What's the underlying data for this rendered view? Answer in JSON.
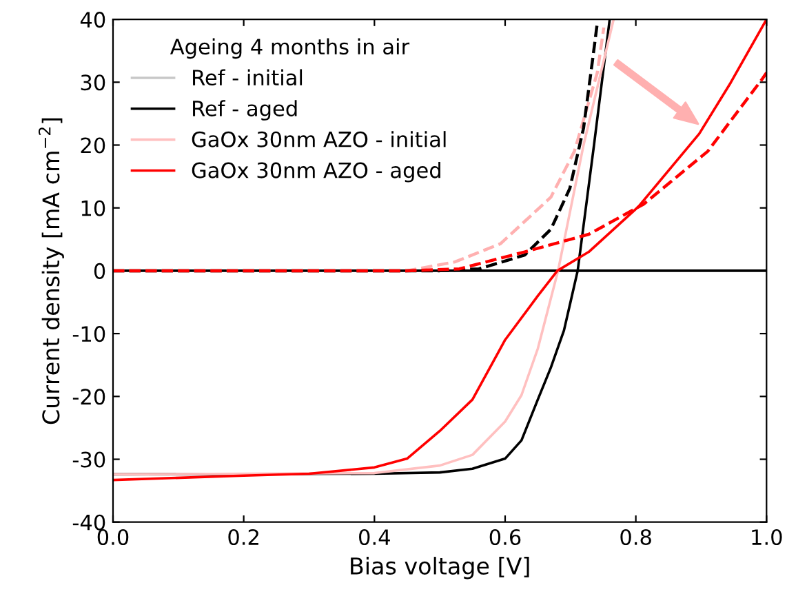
{
  "chart_data": {
    "type": "line",
    "xlabel": "Bias voltage [V]",
    "ylabel": "Current density [mA cm$^{−2}$]",
    "legend_title": "Ageing 4 months in air",
    "legend": "top left",
    "grid": false,
    "line_style": "solid",
    "marker": "none",
    "xlim": [
      0,
      1
    ],
    "xticks": [
      {
        "value": 0,
        "label": "0.0"
      },
      {
        "value": 0.2,
        "label": "0.2"
      },
      {
        "value": 0.4,
        "label": "0.4"
      },
      {
        "value": 0.6,
        "label": "0.6"
      },
      {
        "value": 0.8,
        "label": "0.8"
      },
      {
        "value": 1,
        "label": "1.0"
      }
    ],
    "ylim": [
      -40,
      40
    ],
    "yticks": [
      -40,
      -30,
      -20,
      -10,
      0,
      10,
      20,
      30,
      40
    ],
    "ref_lines": [
      {
        "axis": "y",
        "value": 0,
        "color": "#000000",
        "line_style": "solid"
      }
    ],
    "series": [
      {
        "name": "Ref - initial",
        "color": "#c8c8c8"
      },
      {
        "name": "Ref - aged",
        "color": "#000000",
        "x": [
          0,
          0.4,
          0.5,
          0.55,
          0.6,
          0.625,
          0.65,
          0.67,
          0.69,
          0.7,
          0.711,
          0.736,
          0.76
        ],
        "values": [
          -32.4,
          -32.3,
          -32.1,
          -31.5,
          -29.9,
          -27,
          -20.5,
          -15.4,
          -9.5,
          -5,
          0,
          20,
          40
        ]
      },
      {
        "name": "GaOx 30nm AZO - initial",
        "color": "#ffc0c0",
        "x": [
          0,
          0.4,
          0.5,
          0.55,
          0.6,
          0.625,
          0.65,
          0.67,
          0.681,
          0.72,
          0.766
        ],
        "values": [
          -32.4,
          -32.2,
          -31,
          -29.3,
          -24,
          -19.8,
          -12.4,
          -4.4,
          0,
          20,
          40
        ]
      },
      {
        "name": "GaOx 30nm AZO - aged",
        "color": "#ff0000",
        "x": [
          0,
          0.2,
          0.3,
          0.4,
          0.45,
          0.5,
          0.55,
          0.6,
          0.65,
          0.68,
          0.728,
          0.804,
          0.897,
          0.945,
          1.0
        ],
        "values": [
          -33.3,
          -32.6,
          -32.3,
          -31.3,
          -29.9,
          -25.5,
          -20.5,
          -11,
          -4,
          0,
          3,
          10.2,
          21.8,
          29.9,
          40
        ]
      },
      {
        "color": "#ffb0b0",
        "line_style": "dashed",
        "x": [
          0,
          0.45,
          0.523,
          0.593,
          0.67,
          0.706,
          0.741,
          0.751
        ],
        "values": [
          0,
          0,
          1.4,
          4.3,
          11.7,
          19,
          31.5,
          38.7
        ]
      },
      {
        "color": "#000000",
        "line_style": "dashed",
        "x": [
          0,
          0.5,
          0.56,
          0.63,
          0.67,
          0.699,
          0.72,
          0.734,
          0.741
        ],
        "values": [
          0,
          0,
          0.3,
          2.5,
          6.6,
          13.1,
          22.7,
          33.7,
          39.4
        ]
      },
      {
        "color": "#ff0000",
        "line_style": "dashed",
        "x": [
          0,
          0.45,
          0.53,
          0.63,
          0.728,
          0.812,
          0.91,
          0.994,
          1.0
        ],
        "values": [
          0,
          0,
          0.3,
          3,
          5.8,
          10.6,
          19,
          30.6,
          31.5
        ]
      }
    ]
  }
}
